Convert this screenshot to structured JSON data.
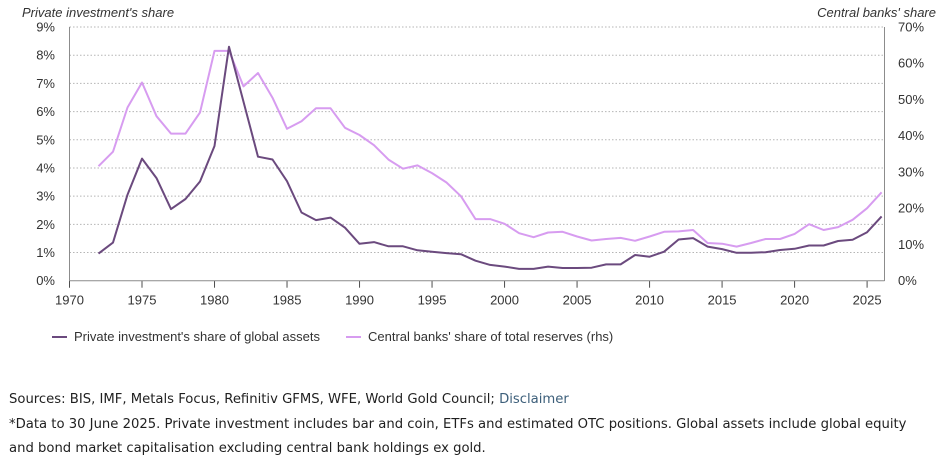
{
  "chart_data": {
    "type": "line",
    "title": "",
    "y_left_title": "Private investment's share",
    "y_right_title": "Central banks' share",
    "xlabel": "",
    "xlim": [
      1970,
      2026.2
    ],
    "x_ticks": [
      1970,
      1975,
      1980,
      1985,
      1990,
      1995,
      2000,
      2005,
      2010,
      2015,
      2020,
      2025
    ],
    "x_tick_labels": [
      "1970",
      "1975",
      "1980",
      "1985",
      "1990",
      "1995",
      "2000",
      "2005",
      "2010",
      "2015",
      "2020",
      "2025"
    ],
    "y_left": {
      "lim": [
        0,
        9
      ],
      "ticks": [
        0,
        1,
        2,
        3,
        4,
        5,
        6,
        7,
        8,
        9
      ],
      "tick_labels": [
        "0%",
        "1%",
        "2%",
        "3%",
        "4%",
        "5%",
        "6%",
        "7%",
        "8%",
        "9%"
      ]
    },
    "y_right": {
      "lim": [
        0,
        70
      ],
      "ticks": [
        0,
        10,
        20,
        30,
        40,
        50,
        60,
        70
      ],
      "tick_labels": [
        "0%",
        "10%",
        "20%",
        "30%",
        "40%",
        "50%",
        "60%",
        "70%"
      ]
    },
    "grid": "horizontal-dotted-left-axis",
    "legend_position": "bottom-left",
    "x": [
      1972,
      1973,
      1974,
      1975,
      1976,
      1977,
      1978,
      1979,
      1980,
      1981,
      1982,
      1983,
      1984,
      1985,
      1986,
      1987,
      1988,
      1989,
      1990,
      1991,
      1992,
      1993,
      1994,
      1995,
      1996,
      1997,
      1998,
      1999,
      2000,
      2001,
      2002,
      2003,
      2004,
      2005,
      2006,
      2007,
      2008,
      2009,
      2010,
      2011,
      2012,
      2013,
      2014,
      2015,
      2016,
      2017,
      2018,
      2019,
      2020,
      2021,
      2022,
      2023,
      2024,
      2025,
      2026
    ],
    "series": [
      {
        "name": "Private investment's share of global assets",
        "axis": "left",
        "unit": "%",
        "color": "#6b4a7e",
        "values": [
          0.96,
          1.35,
          3.05,
          4.33,
          3.64,
          2.54,
          2.9,
          3.52,
          4.78,
          8.3,
          6.35,
          4.4,
          4.3,
          3.53,
          2.42,
          2.15,
          2.24,
          1.88,
          1.31,
          1.37,
          1.22,
          1.22,
          1.08,
          1.03,
          0.98,
          0.94,
          0.71,
          0.56,
          0.5,
          0.42,
          0.42,
          0.5,
          0.45,
          0.45,
          0.46,
          0.58,
          0.58,
          0.91,
          0.85,
          1.03,
          1.46,
          1.51,
          1.21,
          1.12,
          0.99,
          0.99,
          1.01,
          1.09,
          1.13,
          1.25,
          1.25,
          1.41,
          1.45,
          1.72,
          2.28
        ]
      },
      {
        "name": "Central banks' share of total reserves (rhs)",
        "axis": "right",
        "unit": "%",
        "color": "#d79cf0",
        "values": [
          31.6,
          35.6,
          47.8,
          54.7,
          45.4,
          40.6,
          40.6,
          46.4,
          63.4,
          63.4,
          53.6,
          57.3,
          50.5,
          41.9,
          44.0,
          47.6,
          47.6,
          42.2,
          40.2,
          37.4,
          33.4,
          30.9,
          31.8,
          29.7,
          27.1,
          23.3,
          17.0,
          17.0,
          15.7,
          13.1,
          12.0,
          13.3,
          13.5,
          12.2,
          11.1,
          11.5,
          11.8,
          11.0,
          12.2,
          13.5,
          13.6,
          14.0,
          10.4,
          10.2,
          9.4,
          10.4,
          11.5,
          11.5,
          12.9,
          15.6,
          14.0,
          14.8,
          16.8,
          20.0,
          24.4
        ]
      }
    ]
  },
  "legend": {
    "items": [
      {
        "label": "Private investment's share of global assets",
        "color": "#6b4a7e"
      },
      {
        "label": "Central banks' share of total reserves (rhs)",
        "color": "#d79cf0"
      }
    ]
  },
  "footer": {
    "sources_text": "Sources: BIS, IMF, Metals Focus, Refinitiv GFMS, WFE, World Gold Council; ",
    "disclaimer_link": "Disclaimer",
    "note": "*Data to 30 June 2025. Private investment includes bar and coin, ETFs and estimated OTC positions. Global assets include global equity and bond market capitalisation excluding central bank holdings ex gold."
  }
}
